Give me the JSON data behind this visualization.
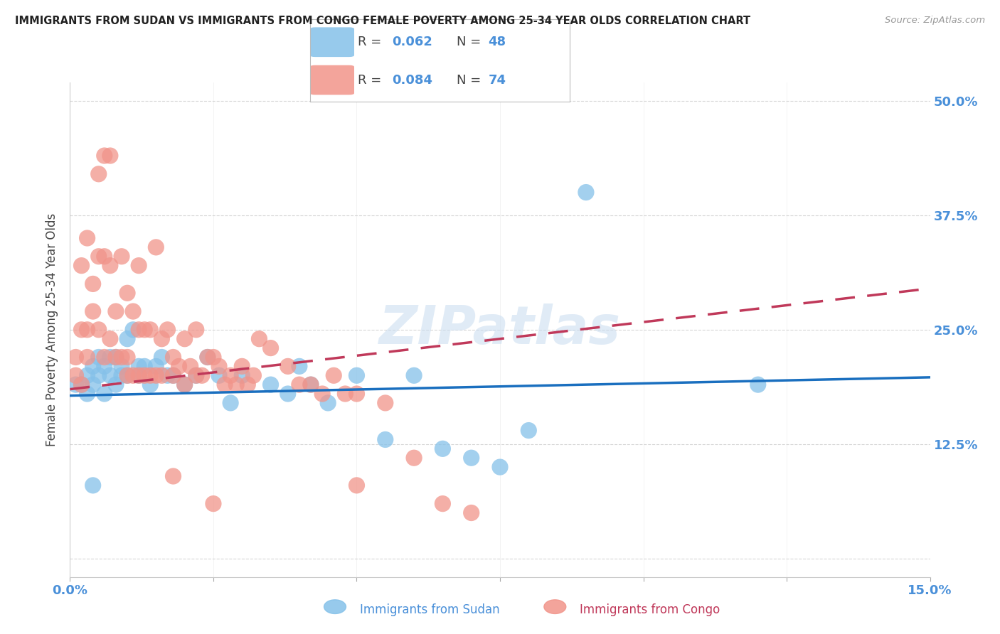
{
  "title": "IMMIGRANTS FROM SUDAN VS IMMIGRANTS FROM CONGO FEMALE POVERTY AMONG 25-34 YEAR OLDS CORRELATION CHART",
  "source": "Source: ZipAtlas.com",
  "ylabel": "Female Poverty Among 25-34 Year Olds",
  "xlim": [
    0.0,
    0.15
  ],
  "ylim": [
    -0.02,
    0.52
  ],
  "yticks": [
    0.0,
    0.125,
    0.25,
    0.375,
    0.5
  ],
  "ytick_labels": [
    "",
    "12.5%",
    "25.0%",
    "37.5%",
    "50.0%"
  ],
  "xticks": [
    0.0,
    0.025,
    0.05,
    0.075,
    0.1,
    0.125,
    0.15
  ],
  "xtick_labels": [
    "0.0%",
    "",
    "",
    "",
    "",
    "",
    "15.0%"
  ],
  "sudan_R": 0.062,
  "sudan_N": 48,
  "congo_R": 0.084,
  "congo_N": 74,
  "sudan_color": "#85C1E9",
  "congo_color": "#F1948A",
  "sudan_line_color": "#1A6FBF",
  "congo_line_color": "#C0395A",
  "background_color": "#ffffff",
  "grid_color": "#cccccc",
  "axis_label_color": "#4A90D9",
  "watermark": "ZIPatlas",
  "sudan_line_x": [
    0.0,
    0.15
  ],
  "sudan_line_y": [
    0.178,
    0.198
  ],
  "congo_line_x": [
    0.0,
    0.15
  ],
  "congo_line_y": [
    0.185,
    0.295
  ],
  "sudan_x": [
    0.001,
    0.002,
    0.003,
    0.003,
    0.004,
    0.004,
    0.005,
    0.005,
    0.006,
    0.006,
    0.007,
    0.007,
    0.008,
    0.008,
    0.009,
    0.009,
    0.01,
    0.01,
    0.011,
    0.012,
    0.012,
    0.013,
    0.014,
    0.015,
    0.016,
    0.017,
    0.018,
    0.02,
    0.022,
    0.024,
    0.026,
    0.028,
    0.03,
    0.035,
    0.038,
    0.04,
    0.042,
    0.045,
    0.05,
    0.055,
    0.06,
    0.065,
    0.07,
    0.075,
    0.08,
    0.09,
    0.12,
    0.004
  ],
  "sudan_y": [
    0.19,
    0.19,
    0.2,
    0.18,
    0.19,
    0.21,
    0.22,
    0.2,
    0.18,
    0.21,
    0.22,
    0.2,
    0.19,
    0.22,
    0.21,
    0.2,
    0.2,
    0.24,
    0.25,
    0.21,
    0.2,
    0.21,
    0.19,
    0.21,
    0.22,
    0.2,
    0.2,
    0.19,
    0.2,
    0.22,
    0.2,
    0.17,
    0.2,
    0.19,
    0.18,
    0.21,
    0.19,
    0.17,
    0.2,
    0.13,
    0.2,
    0.12,
    0.11,
    0.1,
    0.14,
    0.4,
    0.19,
    0.08
  ],
  "congo_x": [
    0.001,
    0.001,
    0.002,
    0.002,
    0.002,
    0.003,
    0.003,
    0.003,
    0.004,
    0.004,
    0.005,
    0.005,
    0.005,
    0.006,
    0.006,
    0.006,
    0.007,
    0.007,
    0.007,
    0.008,
    0.008,
    0.009,
    0.009,
    0.01,
    0.01,
    0.01,
    0.011,
    0.011,
    0.012,
    0.012,
    0.012,
    0.013,
    0.013,
    0.014,
    0.014,
    0.015,
    0.015,
    0.016,
    0.016,
    0.017,
    0.018,
    0.018,
    0.019,
    0.02,
    0.02,
    0.021,
    0.022,
    0.022,
    0.023,
    0.024,
    0.025,
    0.026,
    0.027,
    0.028,
    0.029,
    0.03,
    0.031,
    0.032,
    0.033,
    0.035,
    0.038,
    0.04,
    0.042,
    0.044,
    0.046,
    0.048,
    0.05,
    0.055,
    0.06,
    0.065,
    0.07,
    0.05,
    0.018,
    0.025
  ],
  "congo_y": [
    0.2,
    0.22,
    0.32,
    0.19,
    0.25,
    0.22,
    0.25,
    0.35,
    0.27,
    0.3,
    0.42,
    0.25,
    0.33,
    0.44,
    0.33,
    0.22,
    0.44,
    0.24,
    0.32,
    0.27,
    0.22,
    0.33,
    0.22,
    0.29,
    0.22,
    0.2,
    0.27,
    0.2,
    0.25,
    0.2,
    0.32,
    0.25,
    0.2,
    0.25,
    0.2,
    0.34,
    0.2,
    0.24,
    0.2,
    0.25,
    0.2,
    0.22,
    0.21,
    0.19,
    0.24,
    0.21,
    0.25,
    0.2,
    0.2,
    0.22,
    0.22,
    0.21,
    0.19,
    0.2,
    0.19,
    0.21,
    0.19,
    0.2,
    0.24,
    0.23,
    0.21,
    0.19,
    0.19,
    0.18,
    0.2,
    0.18,
    0.18,
    0.17,
    0.11,
    0.06,
    0.05,
    0.08,
    0.09,
    0.06
  ]
}
